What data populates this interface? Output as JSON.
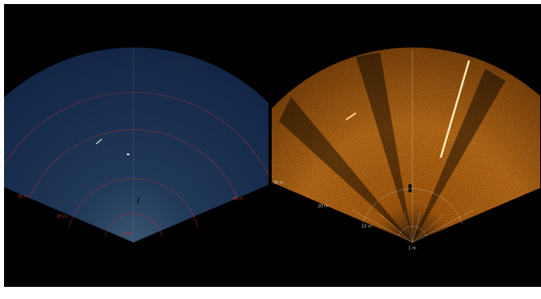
{
  "left_panel": {
    "range_labels": [
      "10 m",
      "20 m",
      "30 m",
      "40 m"
    ]
  },
  "right_panel": {
    "range_labels": [
      "1 m",
      "10 m",
      "20 m",
      "30 m"
    ]
  }
}
